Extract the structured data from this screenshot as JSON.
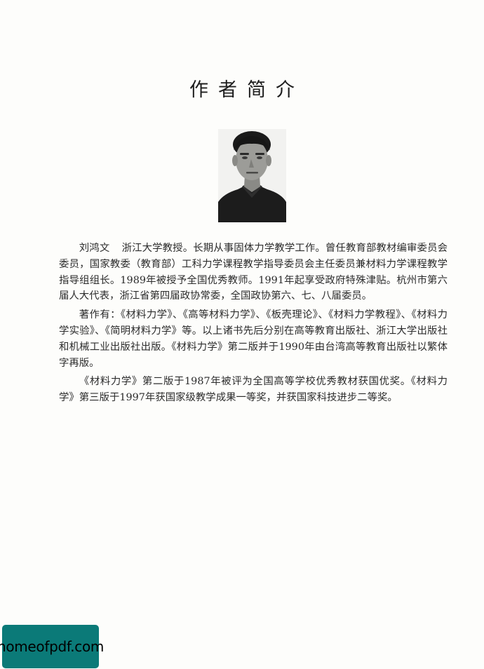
{
  "page": {
    "title": "作者简介"
  },
  "intro": {
    "name": "刘鸿文",
    "p1_rest": "浙江大学教授。长期从事固体力学教学工作。曾任教育部教材编审委员会委员，国家教委（教育部）工科力学课程教学指导委员会主任委员兼材料力学课程教学指导组组长。1989年被授予全国优秀教师。1991年起享受政府特殊津贴。杭州市第六届人大代表，浙江省第四届政协常委，全国政协第六、七、八届委员。",
    "p2": "著作有：《材料力学》、《高等材料力学》、《板壳理论》、《材料力学教程》、《材料力学实验》、《简明材料力学》等。以上诸书先后分别在高等教育出版社、浙江大学出版社和机械工业出版社出版。《材料力学》第二版并于1990年由台湾高等教育出版社以繁体字再版。",
    "p3": "《材料力学》第二版于1987年被评为全国高等学校优秀教材获国优奖。《材料力学》第三版于1997年获国家级教学成果一等奖，并获国家科技进步二等奖。"
  },
  "watermark": {
    "text": "homeofpdf.com",
    "bg_color": "#0b7a78"
  }
}
